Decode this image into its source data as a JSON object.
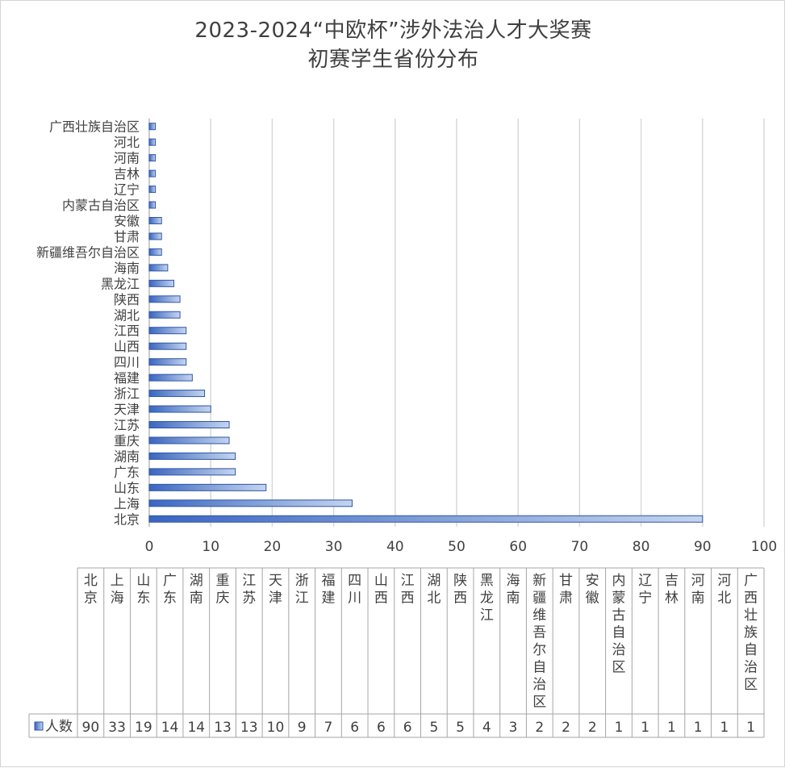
{
  "chart_data": {
    "type": "bar",
    "orientation": "horizontal",
    "title": "2023-2024“中欧杯”涉外法治人才大奖赛",
    "subtitle": "初赛学生省份分布",
    "categories": [
      "北京",
      "上海",
      "山东",
      "广东",
      "湖南",
      "重庆",
      "江苏",
      "天津",
      "浙江",
      "福建",
      "四川",
      "山西",
      "江西",
      "湖北",
      "陕西",
      "黑龙江",
      "海南",
      "新疆维吾尔自治区",
      "甘肃",
      "安徽",
      "内蒙古自治区",
      "辽宁",
      "吉林",
      "河南",
      "河北",
      "广西壮族自治区"
    ],
    "series": [
      {
        "name": "人数",
        "values": [
          90,
          33,
          19,
          14,
          14,
          13,
          13,
          10,
          9,
          7,
          6,
          6,
          6,
          5,
          5,
          4,
          3,
          2,
          2,
          2,
          1,
          1,
          1,
          1,
          1,
          1
        ]
      }
    ],
    "xlim": [
      0,
      100
    ],
    "ticks": [
      "0",
      "10",
      "20",
      "30",
      "40",
      "50",
      "60",
      "70",
      "80",
      "90",
      "100"
    ],
    "grid": true,
    "data_table": true,
    "colors": {
      "bar": "#4472c4",
      "bar_light": "#b4c7e7",
      "grid": "#d9d9d9",
      "text": "#404040"
    }
  }
}
